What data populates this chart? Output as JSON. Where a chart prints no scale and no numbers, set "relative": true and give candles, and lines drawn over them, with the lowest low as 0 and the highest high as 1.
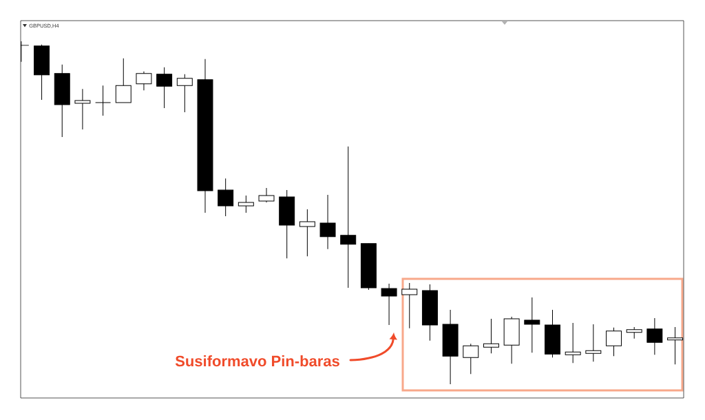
{
  "chart_data": {
    "type": "candlestick",
    "title": "GBPUSD,H4",
    "annotations": [
      "Susiformavo Pin-baras"
    ],
    "relative": true,
    "color": "#000000",
    "categories": [
      null,
      null,
      null,
      null,
      null,
      null,
      null,
      null,
      null,
      null,
      null,
      null,
      null,
      null,
      null,
      null,
      null,
      null,
      null,
      null,
      null,
      null,
      null,
      null,
      null,
      null,
      null,
      null,
      null,
      null,
      null,
      null,
      null
    ],
    "ohlc": [
      [
        0.988,
        1.0,
        0.94,
        0.988
      ],
      [
        0.986,
        0.99,
        0.829,
        0.902
      ],
      [
        0.906,
        0.932,
        0.721,
        0.815
      ],
      [
        0.819,
        0.861,
        0.743,
        0.827
      ],
      [
        0.821,
        0.871,
        0.783,
        0.821
      ],
      [
        0.821,
        0.95,
        0.821,
        0.871
      ],
      [
        0.876,
        0.912,
        0.857,
        0.906
      ],
      [
        0.904,
        0.924,
        0.805,
        0.869
      ],
      [
        0.871,
        0.904,
        0.793,
        0.892
      ],
      [
        0.888,
        0.948,
        0.5,
        0.564
      ],
      [
        0.566,
        0.6,
        0.49,
        0.52
      ],
      [
        0.52,
        0.55,
        0.5,
        0.53
      ],
      [
        0.534,
        0.572,
        0.53,
        0.55
      ],
      [
        0.546,
        0.566,
        0.367,
        0.464
      ],
      [
        0.46,
        0.51,
        0.373,
        0.474
      ],
      [
        0.47,
        0.552,
        0.394,
        0.43
      ],
      [
        0.434,
        0.693,
        0.281,
        0.408
      ],
      [
        0.41,
        0.41,
        0.275,
        0.281
      ],
      [
        0.279,
        0.293,
        0.173,
        0.257
      ],
      [
        0.261,
        0.295,
        0.163,
        0.277
      ],
      [
        0.273,
        0.291,
        0.127,
        0.173
      ],
      [
        0.175,
        0.217,
        0.0,
        0.082
      ],
      [
        0.078,
        0.118,
        0.03,
        0.112
      ],
      [
        0.108,
        0.191,
        0.09,
        0.118
      ],
      [
        0.114,
        0.197,
        0.06,
        0.191
      ],
      [
        0.187,
        0.253,
        0.092,
        0.175
      ],
      [
        0.173,
        0.217,
        0.078,
        0.088
      ],
      [
        0.086,
        0.179,
        0.062,
        0.094
      ],
      [
        0.09,
        0.175,
        0.066,
        0.098
      ],
      [
        0.112,
        0.165,
        0.082,
        0.155
      ],
      [
        0.151,
        0.167,
        0.133,
        0.159
      ],
      [
        0.161,
        0.193,
        0.086,
        0.122
      ],
      [
        0.129,
        0.167,
        0.058,
        0.135
      ]
    ]
  }
}
